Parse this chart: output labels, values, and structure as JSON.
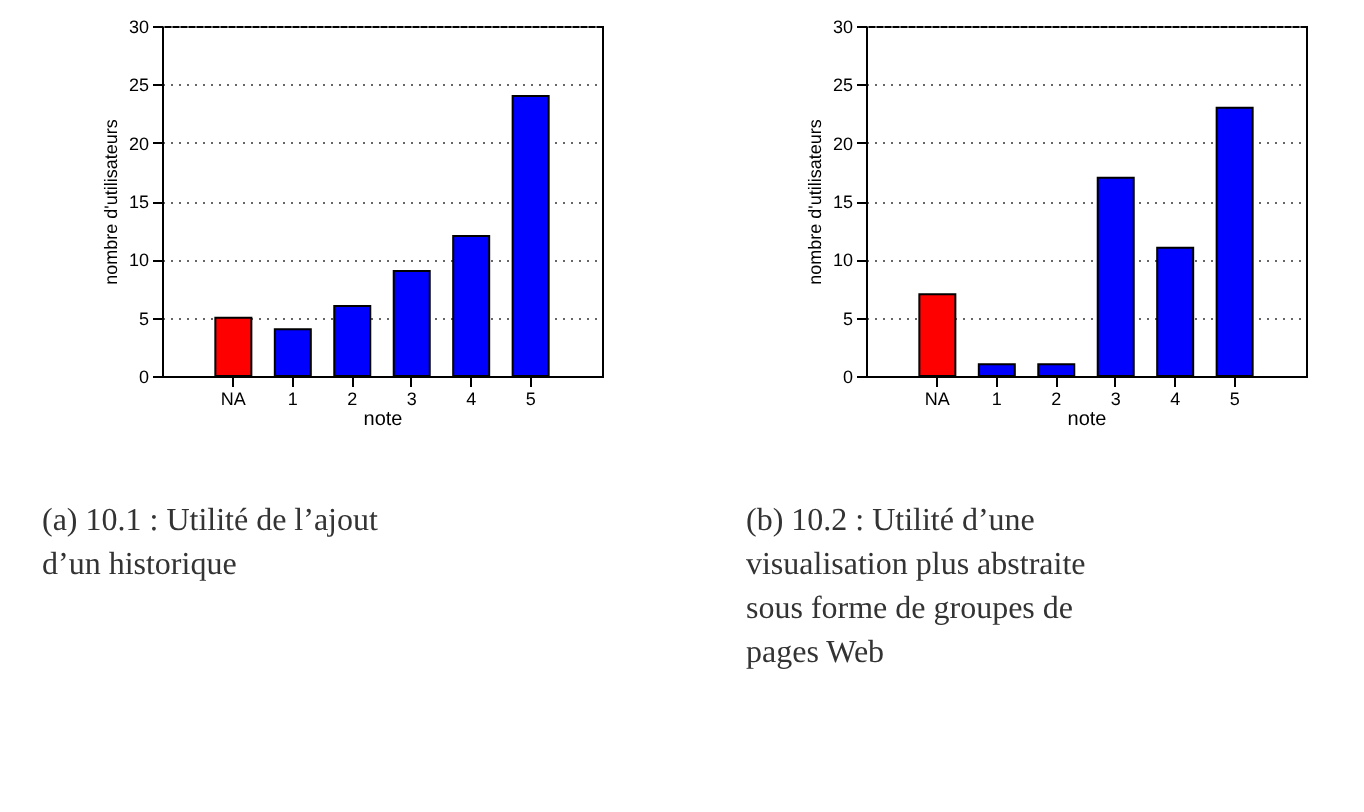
{
  "chart_data": [
    {
      "type": "bar",
      "categories": [
        "NA",
        "1",
        "2",
        "3",
        "4",
        "5"
      ],
      "values": [
        5,
        4,
        6,
        9,
        12,
        24
      ],
      "colors": [
        "#ff0000",
        "#0000ff",
        "#0000ff",
        "#0000ff",
        "#0000ff",
        "#0000ff"
      ],
      "xlabel": "note",
      "ylabel": "nombre d'utilisateurs",
      "ylim": [
        0,
        30
      ],
      "yticks": [
        0,
        5,
        10,
        15,
        20,
        25,
        30
      ],
      "grid": "y",
      "annotations": [
        "(a) 10.1 : Utilité de l’ajout d’un historique"
      ]
    },
    {
      "type": "bar",
      "categories": [
        "NA",
        "1",
        "2",
        "3",
        "4",
        "5"
      ],
      "values": [
        7,
        1,
        1,
        17,
        11,
        23
      ],
      "colors": [
        "#ff0000",
        "#0000ff",
        "#0000ff",
        "#0000ff",
        "#0000ff",
        "#0000ff"
      ],
      "xlabel": "note",
      "ylabel": "nombre d'utilisateurs",
      "ylim": [
        0,
        30
      ],
      "yticks": [
        0,
        5,
        10,
        15,
        20,
        25,
        30
      ],
      "grid": "y",
      "annotations": [
        "(b) 10.2 : Utilité d’une visualisation plus abstraite sous forme de groupes de pages Web"
      ]
    }
  ]
}
